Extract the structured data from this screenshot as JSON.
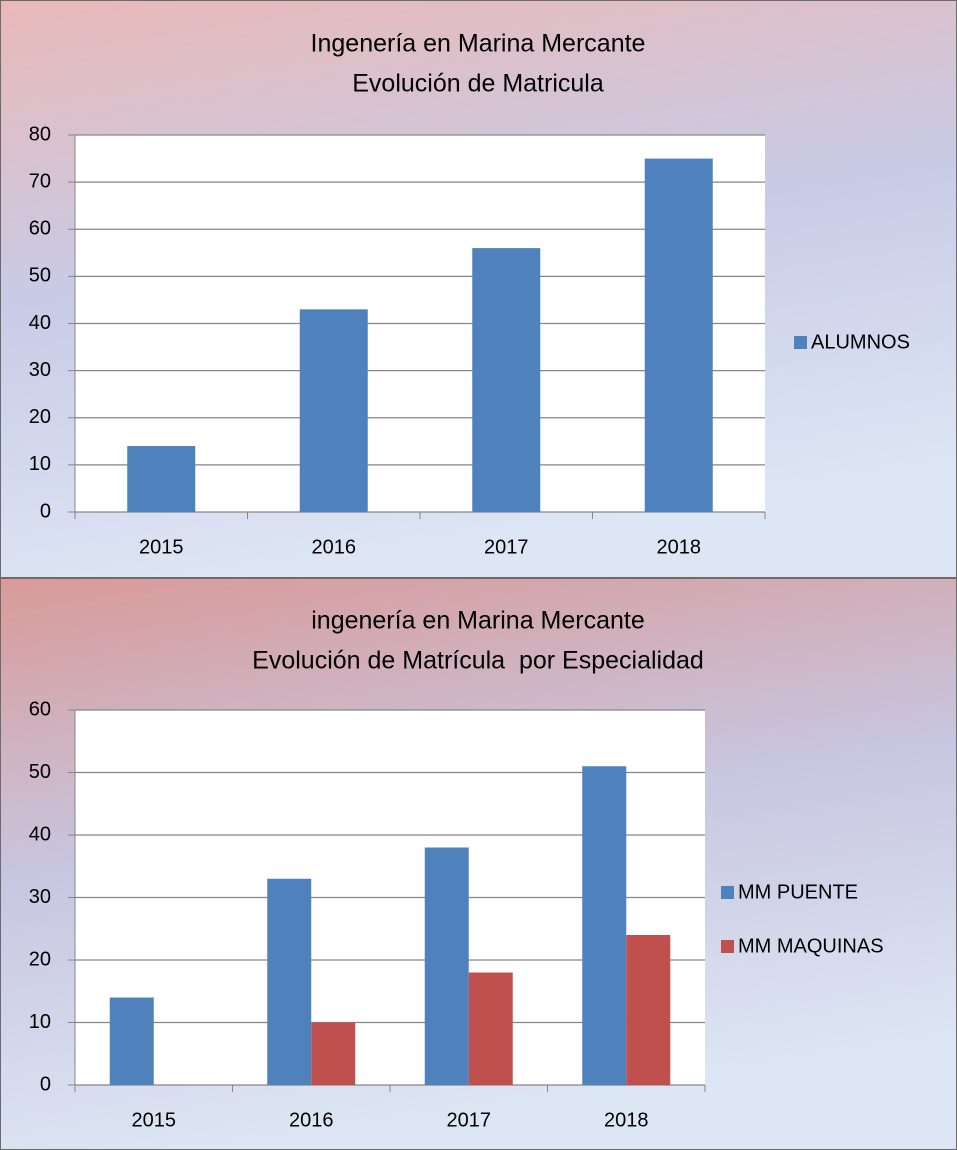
{
  "chart_data": [
    {
      "type": "bar",
      "title": [
        "Ingenería en Marina Mercante",
        "Evolución de Matricula"
      ],
      "categories": [
        "2015",
        "2016",
        "2017",
        "2018"
      ],
      "series": [
        {
          "name": "ALUMNOS",
          "color": "#4f81bd",
          "values": [
            14,
            43,
            56,
            75
          ]
        }
      ],
      "ylim": [
        0,
        80
      ],
      "yticks": [
        0,
        10,
        20,
        30,
        40,
        50,
        60,
        70,
        80
      ],
      "grid": true,
      "legend": "right"
    },
    {
      "type": "bar",
      "title": [
        "ingenería en Marina Mercante",
        "Evolución de Matrícula  por Especialidad"
      ],
      "categories": [
        "2015",
        "2016",
        "2017",
        "2018"
      ],
      "series": [
        {
          "name": "MM PUENTE",
          "color": "#4f81bd",
          "values": [
            14,
            33,
            38,
            51
          ]
        },
        {
          "name": "MM MAQUINAS",
          "color": "#c0504d",
          "values": [
            0,
            10,
            18,
            24
          ]
        }
      ],
      "ylim": [
        0,
        60
      ],
      "yticks": [
        0,
        10,
        20,
        30,
        40,
        50,
        60
      ],
      "grid": true,
      "legend": "right"
    }
  ]
}
